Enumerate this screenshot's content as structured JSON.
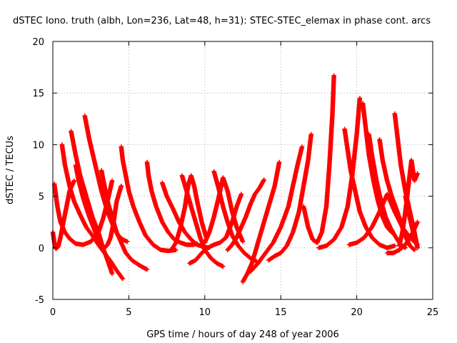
{
  "chart_data": {
    "type": "scatter",
    "title": "dSTEC Iono. truth (albh, Lon=236, Lat=48, h=31): STEC-STEC_elemax in phase cont. arcs",
    "xlabel": "GPS time / hours of day 248 of year 2006",
    "ylabel": "dSTEC  / TECUs",
    "xlim": [
      0,
      25
    ],
    "ylim": [
      -5,
      20
    ],
    "x_ticks": [
      0,
      5,
      10,
      15,
      20,
      25
    ],
    "y_ticks": [
      -5,
      0,
      5,
      10,
      15,
      20
    ],
    "x_tick_labels": [
      "0",
      "5",
      "10",
      "15",
      "20",
      "25"
    ],
    "y_tick_labels": [
      "-5",
      "0",
      "5",
      "10",
      "15",
      "20"
    ],
    "grid": true,
    "marker": "+",
    "color": "#ff0000",
    "series": [
      {
        "x": [
          0.0,
          0.1,
          0.2,
          0.35,
          0.5,
          0.7,
          0.9,
          1.1,
          1.4
        ],
        "y": [
          1.5,
          0.5,
          -0.1,
          0.1,
          1.0,
          2.5,
          4.0,
          5.5,
          6.5
        ]
      },
      {
        "x": [
          0.1,
          0.3,
          0.5,
          0.8,
          1.1,
          1.5,
          2.0,
          2.5,
          3.0,
          3.3,
          3.6,
          3.9
        ],
        "y": [
          6.2,
          4.0,
          2.5,
          1.5,
          0.9,
          0.4,
          0.3,
          0.6,
          1.5,
          2.8,
          4.5,
          6.5
        ]
      },
      {
        "x": [
          0.6,
          0.8,
          1.1,
          1.4,
          1.8,
          2.2,
          2.6,
          3.0,
          3.4,
          3.8,
          4.2,
          4.6
        ],
        "y": [
          10.0,
          8.0,
          6.0,
          4.5,
          3.2,
          2.0,
          1.2,
          0.3,
          -0.5,
          -1.3,
          -2.2,
          -3.0
        ]
      },
      {
        "x": [
          1.2,
          1.5,
          1.8,
          2.2,
          2.6,
          3.0,
          3.3,
          3.6,
          3.9
        ],
        "y": [
          11.3,
          9.0,
          7.0,
          5.0,
          3.0,
          1.5,
          0.0,
          -1.2,
          -2.5
        ]
      },
      {
        "x": [
          1.5,
          1.7,
          2.0,
          2.4,
          2.8,
          3.1,
          3.4,
          3.6,
          3.8,
          4.0,
          4.2,
          4.5
        ],
        "y": [
          8.0,
          6.5,
          4.8,
          3.0,
          1.5,
          0.5,
          0.0,
          0.3,
          1.0,
          2.5,
          4.5,
          6.0
        ]
      },
      {
        "x": [
          2.1,
          2.4,
          2.8,
          3.2,
          3.6,
          4.0,
          4.3,
          4.6,
          4.9
        ],
        "y": [
          12.8,
          10.5,
          8.0,
          5.5,
          3.5,
          2.0,
          1.2,
          0.8,
          0.6
        ]
      },
      {
        "x": [
          3.2,
          3.4,
          3.6,
          3.9,
          4.2,
          4.5,
          4.8,
          5.2,
          5.7,
          6.2
        ],
        "y": [
          7.5,
          6.0,
          4.5,
          3.0,
          1.5,
          0.5,
          -0.5,
          -1.2,
          -1.7,
          -2.1
        ]
      },
      {
        "x": [
          4.5,
          4.6,
          4.8,
          5.0,
          5.3,
          5.7,
          6.1,
          6.6,
          7.1,
          7.6,
          8.1
        ],
        "y": [
          9.8,
          8.5,
          7.0,
          5.5,
          4.0,
          2.5,
          1.2,
          0.3,
          -0.2,
          -0.3,
          -0.2
        ]
      },
      {
        "x": [
          6.2,
          6.3,
          6.5,
          6.8,
          7.2,
          7.6,
          8.0,
          8.4,
          8.8,
          9.2,
          9.5
        ],
        "y": [
          8.3,
          7.0,
          5.5,
          4.0,
          2.5,
          1.5,
          0.8,
          0.5,
          0.3,
          0.3,
          0.4
        ]
      },
      {
        "x": [
          7.2,
          7.5,
          7.9,
          8.3,
          8.7,
          9.1,
          9.5,
          9.9,
          10.3
        ],
        "y": [
          6.3,
          5.0,
          3.8,
          2.5,
          1.5,
          0.8,
          0.3,
          0.1,
          0.0
        ]
      },
      {
        "x": [
          7.8,
          8.1,
          8.4,
          8.7,
          8.9,
          9.1,
          9.3,
          9.5,
          9.8,
          10.1
        ],
        "y": [
          -0.2,
          0.5,
          2.0,
          4.0,
          6.0,
          7.0,
          6.0,
          4.5,
          2.5,
          1.0
        ]
      },
      {
        "x": [
          8.5,
          8.8,
          9.1,
          9.4,
          9.7,
          10.0,
          10.4,
          10.8,
          11.2
        ],
        "y": [
          7.0,
          5.5,
          4.0,
          2.5,
          1.0,
          -0.2,
          -1.0,
          -1.5,
          -1.8
        ]
      },
      {
        "x": [
          10.0,
          10.3,
          10.6,
          10.9,
          11.2,
          11.5,
          11.8,
          12.1,
          12.5
        ],
        "y": [
          0.5,
          1.5,
          3.0,
          4.8,
          6.8,
          5.5,
          3.5,
          2.0,
          0.6
        ]
      },
      {
        "x": [
          10.6,
          10.9,
          11.2,
          11.5,
          11.8,
          12.2,
          12.6,
          13.0,
          13.4
        ],
        "y": [
          7.4,
          5.8,
          4.0,
          2.5,
          1.2,
          0.2,
          -0.5,
          -1.0,
          -1.3
        ]
      },
      {
        "x": [
          9.0,
          9.4,
          9.8,
          10.2,
          10.6,
          11.0,
          11.4,
          11.8,
          12.1,
          12.4
        ],
        "y": [
          -1.5,
          -1.2,
          -0.5,
          0.0,
          0.3,
          0.5,
          1.0,
          2.5,
          4.0,
          5.2
        ]
      },
      {
        "x": [
          12.5,
          12.8,
          13.1,
          13.4,
          13.7,
          14.0,
          14.3,
          14.6,
          14.9
        ],
        "y": [
          -3.3,
          -2.5,
          -1.5,
          0.0,
          1.5,
          3.0,
          4.5,
          6.0,
          8.3
        ]
      },
      {
        "x": [
          11.5,
          11.8,
          12.1,
          12.4,
          12.7,
          13.0,
          13.3,
          13.6,
          13.9
        ],
        "y": [
          -0.2,
          0.3,
          1.0,
          2.0,
          3.0,
          4.2,
          5.2,
          5.8,
          6.6
        ]
      },
      {
        "x": [
          13.0,
          13.5,
          14.0,
          14.5,
          15.0,
          15.5,
          15.8,
          16.1,
          16.4
        ],
        "y": [
          -2.3,
          -1.5,
          -0.5,
          0.5,
          2.0,
          4.0,
          6.0,
          8.0,
          9.8
        ]
      },
      {
        "x": [
          14.2,
          14.6,
          15.0,
          15.4,
          15.8,
          16.2,
          16.5,
          16.8,
          17.0
        ],
        "y": [
          -1.2,
          -0.8,
          -0.5,
          0.2,
          1.5,
          3.5,
          6.0,
          8.5,
          11.0
        ]
      },
      {
        "x": [
          16.5,
          16.8,
          17.1,
          17.4,
          17.7,
          18.0,
          18.2,
          18.4,
          18.5
        ],
        "y": [
          4.0,
          2.0,
          0.8,
          0.5,
          1.5,
          4.0,
          8.0,
          13.0,
          16.7
        ]
      },
      {
        "x": [
          17.5,
          18.0,
          18.5,
          19.0,
          19.4,
          19.7,
          20.0,
          20.2
        ],
        "y": [
          0.0,
          0.2,
          0.8,
          2.0,
          4.0,
          7.0,
          11.0,
          14.5
        ]
      },
      {
        "x": [
          19.2,
          19.4,
          19.6,
          19.9,
          20.2,
          20.6,
          21.0,
          21.5,
          22.0,
          22.5
        ],
        "y": [
          11.5,
          9.5,
          7.5,
          5.5,
          3.5,
          2.0,
          1.0,
          0.3,
          0.0,
          0.2
        ]
      },
      {
        "x": [
          20.4,
          20.6,
          20.8,
          21.1,
          21.4,
          21.7,
          22.0,
          22.3
        ],
        "y": [
          14.0,
          11.5,
          9.0,
          6.5,
          4.5,
          3.0,
          2.0,
          1.5
        ]
      },
      {
        "x": [
          20.8,
          21.0,
          21.3,
          21.6,
          21.9,
          22.2,
          22.5,
          22.8,
          23.0,
          23.2
        ],
        "y": [
          11.0,
          9.0,
          6.5,
          4.5,
          3.0,
          2.0,
          1.2,
          0.5,
          0.2,
          0.0
        ]
      },
      {
        "x": [
          21.5,
          21.7,
          22.0,
          22.3,
          22.6,
          22.9,
          23.1,
          23.3,
          23.5,
          23.8
        ],
        "y": [
          10.5,
          8.5,
          6.5,
          5.0,
          3.8,
          2.5,
          1.5,
          0.8,
          0.2,
          -0.2
        ]
      },
      {
        "x": [
          22.5,
          22.7,
          22.9,
          23.2,
          23.5,
          23.8,
          24.0
        ],
        "y": [
          13.0,
          10.5,
          8.0,
          5.5,
          3.5,
          1.5,
          0.0
        ]
      },
      {
        "x": [
          22.8,
          23.0,
          23.2,
          23.4,
          23.6,
          23.8,
          24.0
        ],
        "y": [
          0.2,
          1.5,
          3.5,
          6.0,
          8.5,
          6.5,
          7.2
        ]
      },
      {
        "x": [
          19.5,
          20.0,
          20.5,
          21.0,
          21.5,
          22.0,
          22.5,
          23.0,
          23.5,
          24.0
        ],
        "y": [
          0.3,
          0.5,
          1.0,
          2.0,
          3.5,
          5.2,
          3.5,
          2.0,
          1.0,
          0.3
        ]
      },
      {
        "x": [
          23.2,
          23.4,
          23.6,
          23.8,
          24.0
        ],
        "y": [
          5.0,
          3.5,
          2.2,
          1.0,
          0.0
        ]
      },
      {
        "x": [
          22.0,
          22.4,
          22.8,
          23.2,
          23.6,
          24.0
        ],
        "y": [
          -0.5,
          -0.5,
          -0.2,
          0.3,
          1.2,
          2.5
        ]
      }
    ]
  }
}
